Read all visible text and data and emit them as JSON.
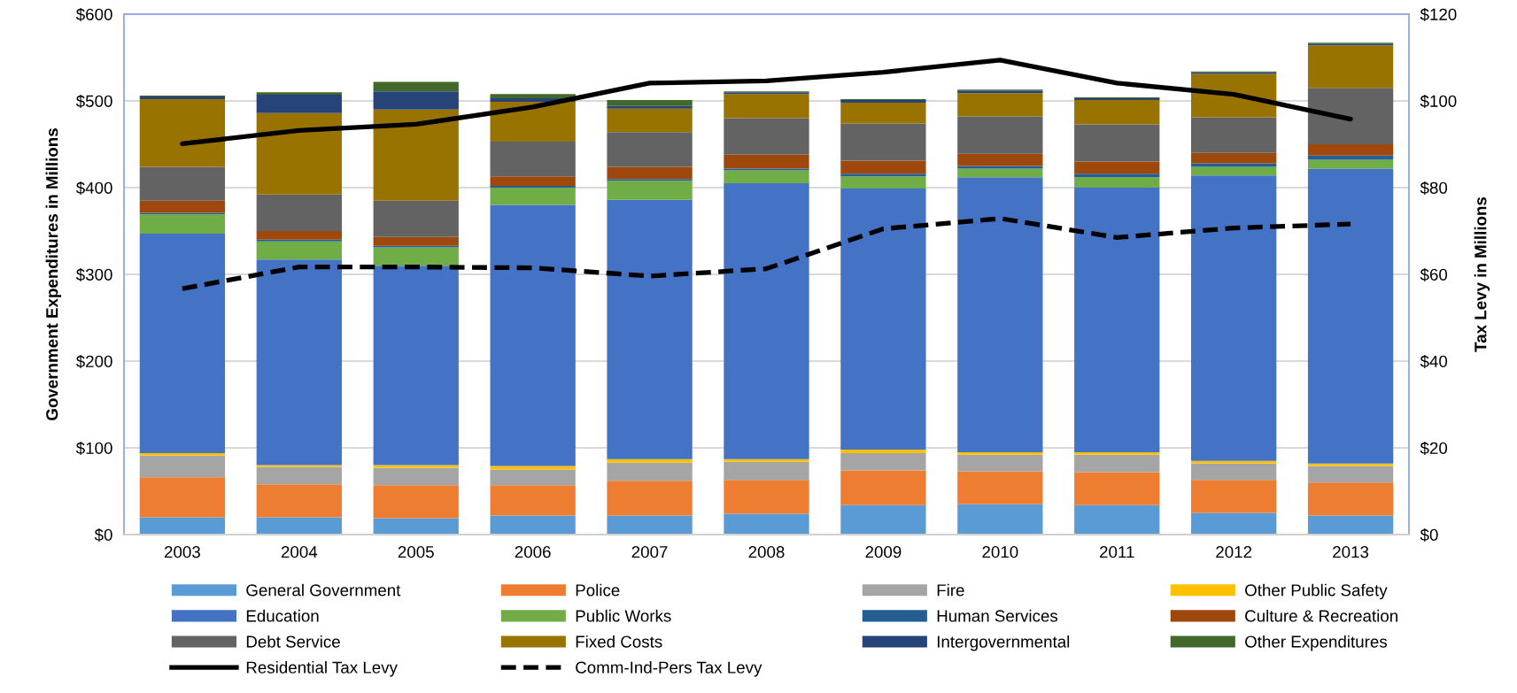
{
  "chart_data": {
    "type": "bar",
    "stacked": true,
    "categories": [
      "2003",
      "2004",
      "2005",
      "2006",
      "2007",
      "2008",
      "2009",
      "2010",
      "2011",
      "2012",
      "2013"
    ],
    "series": [
      {
        "name": "General Government",
        "color": "#5b9bd5",
        "values": [
          20,
          20,
          19,
          22,
          22,
          24,
          34,
          35,
          34,
          25,
          22
        ]
      },
      {
        "name": "Police",
        "color": "#ed7d31",
        "values": [
          46,
          38,
          38,
          35,
          40,
          39,
          40,
          38,
          38,
          38,
          38
        ]
      },
      {
        "name": "Fire",
        "color": "#a5a5a5",
        "values": [
          25,
          20,
          20,
          18,
          21,
          21,
          20,
          19,
          20,
          19,
          19
        ]
      },
      {
        "name": "Other Public Safety",
        "color": "#ffc000",
        "values": [
          3,
          2,
          3,
          4,
          4,
          3,
          4,
          3,
          3,
          3,
          3
        ]
      },
      {
        "name": "Education",
        "color": "#4472c4",
        "values": [
          253,
          237,
          230,
          301,
          299,
          318,
          301,
          317,
          305,
          329,
          340
        ]
      },
      {
        "name": "Public Works",
        "color": "#70ad47",
        "values": [
          22,
          21,
          21,
          20,
          22,
          15,
          14,
          10,
          12,
          10,
          10
        ]
      },
      {
        "name": "Human Services",
        "color": "#255e91",
        "values": [
          2,
          2,
          2,
          2,
          2,
          2,
          3,
          3,
          4,
          4,
          5
        ]
      },
      {
        "name": "Culture & Recreation",
        "color": "#9e480e",
        "values": [
          14,
          10,
          10,
          11,
          14,
          16,
          15,
          14,
          14,
          12,
          13
        ]
      },
      {
        "name": "Debt Service",
        "color": "#636363",
        "values": [
          39,
          42,
          42,
          40,
          40,
          42,
          43,
          43,
          43,
          41,
          65
        ]
      },
      {
        "name": "Fixed Costs",
        "color": "#997300",
        "values": [
          78,
          94,
          105,
          46,
          27,
          28,
          24,
          27,
          28,
          50,
          49
        ]
      },
      {
        "name": "Intergovernmental",
        "color": "#264478",
        "values": [
          3,
          21,
          21,
          4,
          3,
          2,
          3,
          3,
          2,
          2,
          2
        ]
      },
      {
        "name": "Other Expenditures",
        "color": "#43682b",
        "values": [
          1,
          3,
          11,
          5,
          7,
          1,
          1,
          1,
          1,
          1,
          1
        ]
      },
      {
        "name": "Residential Tax Levy",
        "type": "line",
        "axis": "y2",
        "line_style": "solid",
        "color": "#000000",
        "values": [
          90.1,
          93.2,
          94.6,
          98.6,
          104.1,
          104.6,
          106.6,
          109.4,
          104.1,
          101.5,
          95.8
        ]
      },
      {
        "name": "Comm-Ind-Pers Tax Levy",
        "type": "line",
        "axis": "y2",
        "line_style": "dashed",
        "color": "#000000",
        "values": [
          56.7,
          61.7,
          61.7,
          61.5,
          59.6,
          61.3,
          70.5,
          72.9,
          68.5,
          70.7,
          71.6
        ]
      }
    ],
    "ylabel": "Government Expenditures in Millions",
    "y2label": "Tax Levy in Millions",
    "ylim": [
      0,
      600
    ],
    "yticks": [
      {
        "value": 0,
        "label": "$0"
      },
      {
        "value": 100,
        "label": "$100"
      },
      {
        "value": 200,
        "label": "$200"
      },
      {
        "value": 300,
        "label": "$300"
      },
      {
        "value": 400,
        "label": "$400"
      },
      {
        "value": 500,
        "label": "$500"
      },
      {
        "value": 600,
        "label": "$600"
      }
    ],
    "y2lim": [
      0,
      120
    ],
    "y2ticks": [
      {
        "value": 0,
        "label": "$0"
      },
      {
        "value": 20,
        "label": "$20"
      },
      {
        "value": 40,
        "label": "$40"
      },
      {
        "value": 60,
        "label": "$60"
      },
      {
        "value": 80,
        "label": "$80"
      },
      {
        "value": 100,
        "label": "$100"
      },
      {
        "value": 120,
        "label": "$120"
      }
    ],
    "grid": "y",
    "legend": "bottom"
  }
}
